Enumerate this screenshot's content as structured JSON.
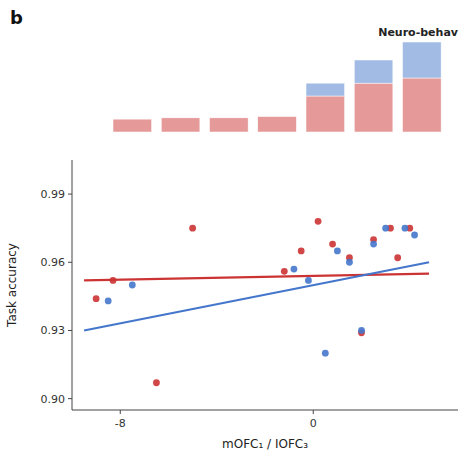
{
  "chart_data": [
    {
      "type": "bar",
      "stacked": true,
      "title": "Neuro-behav",
      "annotations": [
        "b"
      ],
      "x": [
        -7.5,
        -5.5,
        -3.5,
        -1.5,
        0.5,
        2.5,
        4.5
      ],
      "xlim": [
        -10,
        6
      ],
      "ylim": [
        0,
        7.0
      ],
      "tick_labels": false,
      "grid": false,
      "series": [
        {
          "color": "#CC3333",
          "values": [
            1.0,
            1.1,
            1.1,
            1.2,
            2.8,
            3.8,
            4.2
          ]
        },
        {
          "color": "#4477CC",
          "values": [
            0.0,
            0.0,
            0.0,
            0.0,
            1.0,
            1.8,
            2.8
          ]
        }
      ]
    },
    {
      "type": "scatter",
      "xlabel": "mOFC₁ / IOFC₃",
      "ylabel": "Task accuracy",
      "xlim": [
        -10,
        6
      ],
      "ylim": [
        0.895,
        1.005
      ],
      "xticks": [
        -8,
        0
      ],
      "yticks": [
        {
          "value": 0.9,
          "label": "0.90"
        },
        0.93,
        0.96,
        0.99
      ],
      "grid": false,
      "series": [
        {
          "type": "scatter",
          "color": "#CC3333",
          "x": [
            -9.0,
            -8.3,
            -6.5,
            -5.0,
            -1.2,
            -0.5,
            0.2,
            0.8,
            1.5,
            2.0,
            2.5,
            3.2,
            3.5,
            4.0
          ],
          "values": [
            0.944,
            0.952,
            0.907,
            0.975,
            0.956,
            0.965,
            0.978,
            0.968,
            0.962,
            0.929,
            0.97,
            0.975,
            0.962,
            0.975
          ]
        },
        {
          "type": "scatter",
          "color": "#4477CC",
          "x": [
            -8.5,
            -7.5,
            -0.8,
            -0.2,
            0.5,
            1.0,
            1.5,
            2.0,
            2.5,
            3.0,
            3.8,
            4.2
          ],
          "values": [
            0.943,
            0.95,
            0.957,
            0.952,
            0.92,
            0.965,
            0.96,
            0.93,
            0.968,
            0.975,
            0.975,
            0.972
          ]
        },
        {
          "type": "line",
          "color": "#CC3333",
          "x": [
            -9.5,
            4.8
          ],
          "values": [
            0.952,
            0.955
          ]
        },
        {
          "type": "line",
          "color": "#4477CC",
          "x": [
            -9.5,
            4.8
          ],
          "values": [
            0.93,
            0.96
          ]
        }
      ]
    }
  ]
}
